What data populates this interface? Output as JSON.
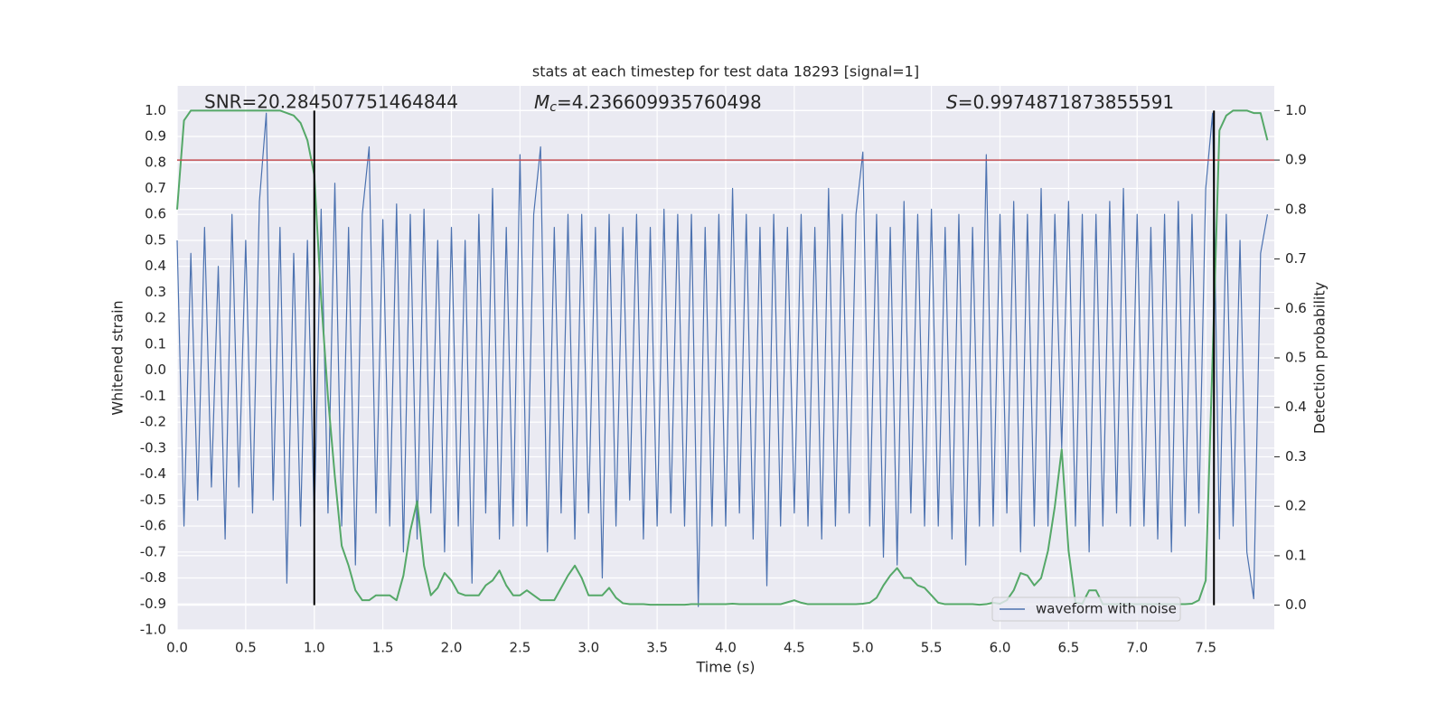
{
  "chart_data": {
    "type": "line",
    "title": "stats at each timestep for test data 18293 [signal=1]",
    "xlabel": "Time (s)",
    "ylabel": "Whitened strain",
    "y2label": "Detection probability",
    "annotations": [
      {
        "text": "SNR=20.284507751464844"
      },
      {
        "symbol": "M",
        "subscript": "c",
        "text": "=4.236609935760498"
      },
      {
        "symbol": "S",
        "text": "=0.9974871873855591"
      }
    ],
    "x": [
      0.0,
      0.05,
      0.1,
      0.15,
      0.2,
      0.25,
      0.3,
      0.35,
      0.4,
      0.45,
      0.5,
      0.55,
      0.6,
      0.65,
      0.7,
      0.75,
      0.8,
      0.85,
      0.9,
      0.95,
      1.0,
      1.05,
      1.1,
      1.15,
      1.2,
      1.25,
      1.3,
      1.35,
      1.4,
      1.45,
      1.5,
      1.55,
      1.6,
      1.65,
      1.7,
      1.75,
      1.8,
      1.85,
      1.9,
      1.95,
      2.0,
      2.05,
      2.1,
      2.15,
      2.2,
      2.25,
      2.3,
      2.35,
      2.4,
      2.45,
      2.5,
      2.55,
      2.6,
      2.65,
      2.7,
      2.75,
      2.8,
      2.85,
      2.9,
      2.95,
      3.0,
      3.05,
      3.1,
      3.15,
      3.2,
      3.25,
      3.3,
      3.35,
      3.4,
      3.45,
      3.5,
      3.55,
      3.6,
      3.65,
      3.7,
      3.75,
      3.8,
      3.85,
      3.9,
      3.95,
      4.0,
      4.05,
      4.1,
      4.15,
      4.2,
      4.25,
      4.3,
      4.35,
      4.4,
      4.45,
      4.5,
      4.55,
      4.6,
      4.65,
      4.7,
      4.75,
      4.8,
      4.85,
      4.9,
      4.95,
      5.0,
      5.05,
      5.1,
      5.15,
      5.2,
      5.25,
      5.3,
      5.35,
      5.4,
      5.45,
      5.5,
      5.55,
      5.6,
      5.65,
      5.7,
      5.75,
      5.8,
      5.85,
      5.9,
      5.95,
      6.0,
      6.05,
      6.1,
      6.15,
      6.2,
      6.25,
      6.3,
      6.35,
      6.4,
      6.45,
      6.5,
      6.55,
      6.6,
      6.65,
      6.7,
      6.75,
      6.8,
      6.85,
      6.9,
      6.95,
      7.0,
      7.05,
      7.1,
      7.15,
      7.2,
      7.25,
      7.3,
      7.35,
      7.4,
      7.45,
      7.5,
      7.55,
      7.6,
      7.65,
      7.7,
      7.75,
      7.8,
      7.85,
      7.9,
      7.95
    ],
    "series": [
      {
        "name": "waveform with noise",
        "color": "#4c72b0",
        "values": [
          0.5,
          -0.6,
          0.45,
          -0.5,
          0.55,
          -0.45,
          0.4,
          -0.65,
          0.6,
          -0.45,
          0.5,
          -0.55,
          0.65,
          0.99,
          -0.5,
          0.55,
          -0.82,
          0.45,
          -0.6,
          0.5,
          -0.58,
          0.62,
          -0.55,
          0.72,
          -0.6,
          0.55,
          -0.75,
          0.6,
          0.86,
          -0.55,
          0.58,
          -0.6,
          0.64,
          -0.7,
          0.6,
          -0.65,
          0.62,
          -0.55,
          0.5,
          -0.7,
          0.55,
          -0.6,
          0.5,
          -0.82,
          0.6,
          -0.55,
          0.7,
          -0.65,
          0.55,
          -0.6,
          0.83,
          -0.6,
          0.6,
          0.86,
          -0.7,
          0.55,
          -0.55,
          0.6,
          -0.65,
          0.6,
          -0.55,
          0.55,
          -0.8,
          0.6,
          -0.6,
          0.55,
          -0.5,
          0.6,
          -0.65,
          0.55,
          -0.6,
          0.62,
          -0.55,
          0.6,
          -0.6,
          0.6,
          -0.91,
          0.55,
          -0.6,
          0.6,
          -0.6,
          0.7,
          -0.55,
          0.6,
          -0.65,
          0.55,
          -0.83,
          0.6,
          -0.6,
          0.55,
          -0.55,
          0.6,
          -0.6,
          0.55,
          -0.65,
          0.7,
          -0.6,
          0.6,
          -0.55,
          0.6,
          0.84,
          -0.6,
          0.6,
          -0.72,
          0.55,
          -0.75,
          0.65,
          -0.55,
          0.6,
          -0.6,
          0.62,
          -0.6,
          0.55,
          -0.65,
          0.6,
          -0.75,
          0.55,
          -0.6,
          0.83,
          -0.6,
          0.6,
          -0.55,
          0.65,
          -0.7,
          0.6,
          -0.6,
          0.7,
          -0.6,
          0.6,
          -0.3,
          0.65,
          -0.6,
          0.6,
          -0.7,
          0.6,
          -0.6,
          0.65,
          -0.55,
          0.7,
          -0.6,
          0.6,
          -0.6,
          0.55,
          -0.65,
          0.6,
          -0.7,
          0.65,
          -0.6,
          0.6,
          -0.55,
          0.7,
          0.99,
          -0.65,
          0.6,
          -0.6,
          0.5,
          -0.7,
          -0.88,
          0.45,
          0.6
        ]
      },
      {
        "color": "#55a868",
        "axis": "y2",
        "values": [
          0.8,
          0.98,
          1.0,
          1.0,
          1.0,
          1.0,
          1.0,
          1.0,
          1.0,
          1.0,
          1.0,
          1.0,
          1.0,
          1.0,
          1.0,
          1.0,
          0.995,
          0.99,
          0.975,
          0.94,
          0.87,
          0.62,
          0.42,
          0.26,
          0.12,
          0.08,
          0.03,
          0.01,
          0.01,
          0.02,
          0.02,
          0.02,
          0.01,
          0.06,
          0.15,
          0.21,
          0.08,
          0.02,
          0.035,
          0.065,
          0.05,
          0.025,
          0.02,
          0.02,
          0.02,
          0.04,
          0.05,
          0.07,
          0.04,
          0.02,
          0.02,
          0.03,
          0.02,
          0.01,
          0.01,
          0.01,
          0.035,
          0.06,
          0.08,
          0.055,
          0.02,
          0.02,
          0.02,
          0.035,
          0.015,
          0.004,
          0.002,
          0.002,
          0.002,
          0.001,
          0.001,
          0.001,
          0.001,
          0.001,
          0.001,
          0.002,
          0.002,
          0.002,
          0.002,
          0.002,
          0.002,
          0.003,
          0.002,
          0.002,
          0.002,
          0.002,
          0.002,
          0.002,
          0.002,
          0.006,
          0.01,
          0.005,
          0.002,
          0.002,
          0.002,
          0.002,
          0.002,
          0.002,
          0.002,
          0.002,
          0.003,
          0.005,
          0.015,
          0.04,
          0.06,
          0.075,
          0.055,
          0.055,
          0.04,
          0.035,
          0.02,
          0.005,
          0.002,
          0.002,
          0.002,
          0.002,
          0.002,
          0.001,
          0.002,
          0.005,
          0.003,
          0.01,
          0.03,
          0.065,
          0.06,
          0.04,
          0.055,
          0.11,
          0.2,
          0.315,
          0.11,
          0.005,
          0.003,
          0.03,
          0.03,
          0.002,
          0.002,
          0.002,
          0.002,
          0.002,
          0.002,
          0.002,
          0.002,
          0.002,
          0.002,
          0.002,
          0.002,
          0.002,
          0.003,
          0.01,
          0.05,
          0.5,
          0.96,
          0.99,
          1.0,
          1.0,
          1.0,
          0.995,
          0.995,
          0.94
        ]
      }
    ],
    "hlines": [
      {
        "y": 0.9,
        "axis": "y2",
        "color": "#c44e52"
      }
    ],
    "vlines": [
      {
        "x": 1.0,
        "ymin": 0,
        "ymax": 1,
        "axis": "y2",
        "color": "#000000"
      },
      {
        "x": 7.56,
        "ymin": 0,
        "ymax": 1,
        "axis": "y2",
        "color": "#000000"
      }
    ],
    "xlim": [
      0,
      8
    ],
    "ylim": [
      -1.0,
      1.095
    ],
    "y2lim": [
      -0.05,
      1.05
    ],
    "xticks": [
      {
        "value": 0,
        "label": "0.0"
      },
      {
        "value": 0.5,
        "label": "0.5"
      },
      {
        "value": 1,
        "label": "1.0"
      },
      {
        "value": 1.5,
        "label": "1.5"
      },
      {
        "value": 2,
        "label": "2.0"
      },
      {
        "value": 2.5,
        "label": "2.5"
      },
      {
        "value": 3,
        "label": "3.0"
      },
      {
        "value": 3.5,
        "label": "3.5"
      },
      {
        "value": 4,
        "label": "4.0"
      },
      {
        "value": 4.5,
        "label": "4.5"
      },
      {
        "value": 5,
        "label": "5.0"
      },
      {
        "value": 5.5,
        "label": "5.5"
      },
      {
        "value": 6,
        "label": "6.0"
      },
      {
        "value": 6.5,
        "label": "6.5"
      },
      {
        "value": 7,
        "label": "7.0"
      },
      {
        "value": 7.5,
        "label": "7.5"
      }
    ],
    "yticks": [
      {
        "value": -1,
        "label": "-1.0"
      },
      {
        "value": -0.9,
        "label": "-0.9"
      },
      {
        "value": -0.8,
        "label": "-0.8"
      },
      {
        "value": -0.7,
        "label": "-0.7"
      },
      {
        "value": -0.6,
        "label": "-0.6"
      },
      {
        "value": -0.5,
        "label": "-0.5"
      },
      {
        "value": -0.4,
        "label": "-0.4"
      },
      {
        "value": -0.3,
        "label": "-0.3"
      },
      {
        "value": -0.2,
        "label": "-0.2"
      },
      {
        "value": -0.1,
        "label": "-0.1"
      },
      {
        "value": 0,
        "label": "0.0"
      },
      {
        "value": 0.1,
        "label": "0.1"
      },
      {
        "value": 0.2,
        "label": "0.2"
      },
      {
        "value": 0.3,
        "label": "0.3"
      },
      {
        "value": 0.4,
        "label": "0.4"
      },
      {
        "value": 0.5,
        "label": "0.5"
      },
      {
        "value": 0.6,
        "label": "0.6"
      },
      {
        "value": 0.7,
        "label": "0.7"
      },
      {
        "value": 0.8,
        "label": "0.8"
      },
      {
        "value": 0.9,
        "label": "0.9"
      },
      {
        "value": 1,
        "label": "1.0"
      }
    ],
    "y2ticks": [
      {
        "value": 0,
        "label": "0.0"
      },
      {
        "value": 0.1,
        "label": "0.1"
      },
      {
        "value": 0.2,
        "label": "0.2"
      },
      {
        "value": 0.3,
        "label": "0.3"
      },
      {
        "value": 0.4,
        "label": "0.4"
      },
      {
        "value": 0.5,
        "label": "0.5"
      },
      {
        "value": 0.6,
        "label": "0.6"
      },
      {
        "value": 0.7,
        "label": "0.7"
      },
      {
        "value": 0.8,
        "label": "0.8"
      },
      {
        "value": 0.9,
        "label": "0.9"
      },
      {
        "value": 1,
        "label": "1.0"
      }
    ],
    "grid": true,
    "legend": "lower right"
  }
}
